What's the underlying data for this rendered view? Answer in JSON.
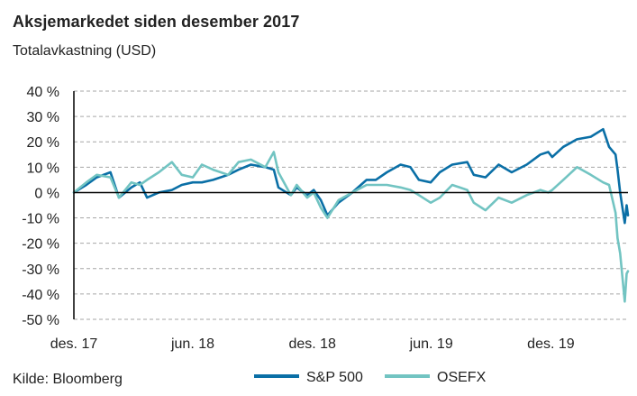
{
  "title": "Aksjemarkedet siden desember 2017",
  "subtitle": "Totalavkastning (USD)",
  "source": "Kilde: Bloomberg",
  "colors": {
    "sp500": "#0a6fa6",
    "osefx": "#72c4c2",
    "grid": "#a6a6a6",
    "axis": "#000000"
  },
  "chart_data": {
    "type": "line",
    "title": "Aksjemarkedet siden desember 2017",
    "subtitle": "Totalavkastning (USD)",
    "ylabel": "",
    "xlabel": "",
    "ylim": [
      -50,
      40
    ],
    "xlim": [
      "2017-12-01",
      "2020-03-28"
    ],
    "y_ticks": [
      40,
      30,
      20,
      10,
      0,
      -10,
      -20,
      -30,
      -40,
      -50
    ],
    "y_tick_labels": [
      "40 %",
      "30 %",
      "20 %",
      "10 %",
      "0 %",
      "-10 %",
      "-20 %",
      "-30 %",
      "-40 %",
      "-50 %"
    ],
    "x_ticks": [
      "2017-12-01",
      "2018-06-01",
      "2018-12-01",
      "2019-06-01",
      "2019-12-01"
    ],
    "x_tick_labels": [
      "des. 17",
      "jun. 18",
      "des. 18",
      "jun. 19",
      "des. 19"
    ],
    "grid": "horizontal dashed",
    "legend": "bottom",
    "series": [
      {
        "name": "S&P 500",
        "color": "#0a6fa6",
        "x": [
          "2017-12-01",
          "2017-12-20",
          "2018-01-05",
          "2018-01-26",
          "2018-02-08",
          "2018-02-27",
          "2018-03-12",
          "2018-03-23",
          "2018-04-10",
          "2018-04-30",
          "2018-05-15",
          "2018-06-01",
          "2018-06-15",
          "2018-07-02",
          "2018-07-25",
          "2018-08-10",
          "2018-08-29",
          "2018-09-20",
          "2018-10-03",
          "2018-10-10",
          "2018-10-29",
          "2018-11-07",
          "2018-11-23",
          "2018-12-03",
          "2018-12-14",
          "2018-12-24",
          "2019-01-10",
          "2019-01-31",
          "2019-02-22",
          "2019-03-08",
          "2019-03-25",
          "2019-04-15",
          "2019-04-30",
          "2019-05-13",
          "2019-05-31",
          "2019-06-14",
          "2019-07-03",
          "2019-07-26",
          "2019-08-05",
          "2019-08-23",
          "2019-09-12",
          "2019-10-02",
          "2019-10-25",
          "2019-11-15",
          "2019-11-27",
          "2019-12-03",
          "2019-12-20",
          "2020-01-10",
          "2020-01-31",
          "2020-02-19",
          "2020-02-28",
          "2020-03-09",
          "2020-03-12",
          "2020-03-16",
          "2020-03-23",
          "2020-03-26",
          "2020-03-28"
        ],
        "values": [
          0,
          3,
          6,
          8,
          -2,
          2,
          4,
          -2,
          0,
          1,
          3,
          4,
          4,
          5,
          7,
          9,
          11,
          10,
          9,
          2,
          -1,
          2,
          -1,
          1,
          -3,
          -9,
          -4,
          0,
          5,
          5,
          8,
          11,
          10,
          5,
          4,
          8,
          11,
          12,
          7,
          6,
          11,
          8,
          11,
          15,
          16,
          14,
          18,
          21,
          22,
          25,
          18,
          15,
          9,
          0,
          -12,
          -5,
          -9
        ]
      },
      {
        "name": "OSEFX",
        "color": "#72c4c2",
        "x": [
          "2017-12-01",
          "2017-12-20",
          "2018-01-05",
          "2018-01-26",
          "2018-02-08",
          "2018-02-27",
          "2018-03-12",
          "2018-03-23",
          "2018-04-10",
          "2018-04-30",
          "2018-05-15",
          "2018-06-01",
          "2018-06-15",
          "2018-07-02",
          "2018-07-25",
          "2018-08-10",
          "2018-08-29",
          "2018-09-20",
          "2018-10-03",
          "2018-10-10",
          "2018-10-29",
          "2018-11-07",
          "2018-11-23",
          "2018-12-03",
          "2018-12-14",
          "2018-12-24",
          "2019-01-10",
          "2019-01-31",
          "2019-02-22",
          "2019-03-08",
          "2019-03-25",
          "2019-04-15",
          "2019-04-30",
          "2019-05-13",
          "2019-05-31",
          "2019-06-14",
          "2019-07-03",
          "2019-07-26",
          "2019-08-05",
          "2019-08-23",
          "2019-09-12",
          "2019-10-02",
          "2019-10-25",
          "2019-11-15",
          "2019-11-27",
          "2019-12-03",
          "2019-12-20",
          "2020-01-10",
          "2020-01-31",
          "2020-02-19",
          "2020-02-28",
          "2020-03-09",
          "2020-03-12",
          "2020-03-16",
          "2020-03-23",
          "2020-03-26",
          "2020-03-28"
        ],
        "values": [
          0,
          4,
          7,
          6,
          -2,
          4,
          3,
          5,
          8,
          12,
          7,
          6,
          11,
          9,
          7,
          12,
          13,
          10,
          16,
          8,
          -1,
          3,
          -2,
          0,
          -6,
          -10,
          -3,
          0,
          3,
          3,
          3,
          2,
          1,
          -1,
          -4,
          -2,
          3,
          1,
          -4,
          -7,
          -2,
          -4,
          -1,
          1,
          0,
          1,
          5,
          10,
          7,
          4,
          3,
          -8,
          -18,
          -24,
          -43,
          -32,
          -31
        ]
      }
    ]
  }
}
